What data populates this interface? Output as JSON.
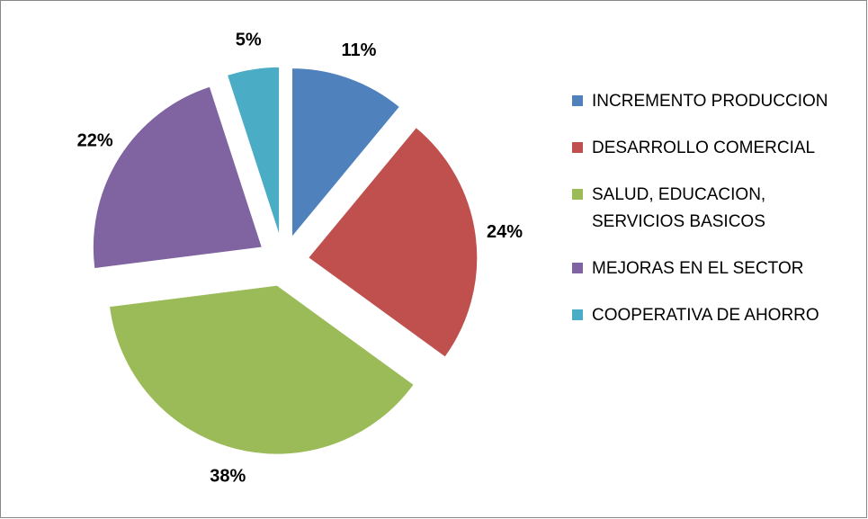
{
  "chart_data": {
    "type": "pie",
    "categories": [
      "INCREMENTO PRODUCCION",
      "DESARROLLO COMERCIAL",
      "SALUD, EDUCACION, SERVICIOS BASICOS",
      "MEJORAS EN EL SECTOR",
      "COOPERATIVA DE AHORRO"
    ],
    "values": [
      11,
      24,
      38,
      22,
      5
    ],
    "value_labels": [
      "11%",
      "24%",
      "38%",
      "22%",
      "5%"
    ],
    "colors": [
      "#4f81bd",
      "#c0504d",
      "#9bbb59",
      "#8064a2",
      "#4bacc6"
    ],
    "legend": "right"
  }
}
